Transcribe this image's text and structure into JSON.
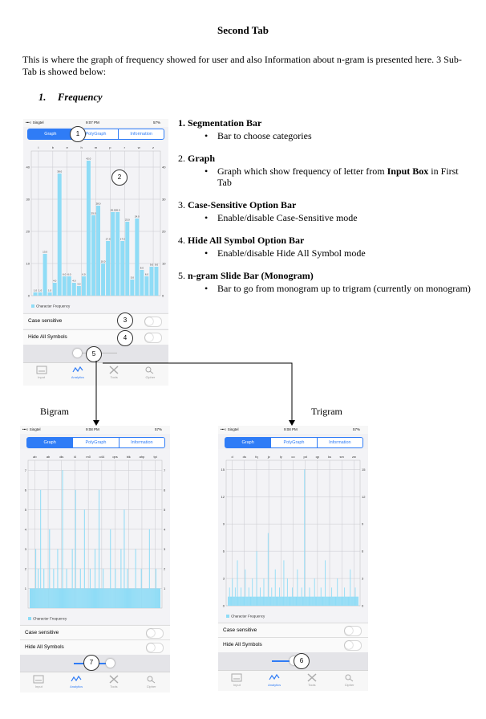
{
  "doc": {
    "title": "Second Tab",
    "intro": "This is where the graph of frequency showed for user and also Information about n-gram is presented here. 3 Sub-Tab is showed below:",
    "section_number": "1.",
    "section_title": "Frequency"
  },
  "list": [
    {
      "num": "1.",
      "head": "Segmentation Bar",
      "head_bold": true,
      "bullet_pre": "Bar to choose categories",
      "bullet_bold": "",
      "bullet_post": ""
    },
    {
      "num": "2.",
      "head": "Graph",
      "head_bold": true,
      "bullet_pre": "Graph which show frequency of letter from ",
      "bullet_bold": "Input Box",
      "bullet_post": " in First Tab"
    },
    {
      "num": "3.",
      "head": "Case-Sensitive Option Bar",
      "head_bold": true,
      "bullet_pre": "Enable/disable Case-Sensitive mode",
      "bullet_bold": "",
      "bullet_post": ""
    },
    {
      "num": "4.",
      "head": "Hide All Symbol Option Bar",
      "head_bold": true,
      "bullet_pre": "Enable/disable Hide All Symbol mode",
      "bullet_bold": "",
      "bullet_post": ""
    },
    {
      "num": "5.",
      "head": "n-gram Slide Bar (Monogram)",
      "head_bold": true,
      "bullet_pre": "Bar to go from monogram up to trigram (currently on monogram)",
      "bullet_bold": "",
      "bullet_post": ""
    }
  ],
  "captions": {
    "bigram": "Bigram",
    "trigram": "Trigram"
  },
  "phone_ui": {
    "carrier": "•••○ Singtel",
    "battery": "57%",
    "tabs": [
      "Graph",
      "PolyGraph",
      "Information"
    ],
    "legend": "Character Frequency",
    "case_sensitive": "Case sensitive",
    "hide_symbols": "Hide All Symbols",
    "tabbar": [
      "Input",
      "Analytics",
      "Tools",
      "Cipher"
    ]
  },
  "phones": {
    "mono": {
      "time": "9:07 PM",
      "case_label": "Case sensitive",
      "hide_label": "Hide All Symbols",
      "slider": 0.0
    },
    "bigram": {
      "time": "9:08 PM",
      "case_label": "Case sensitive",
      "hide_label": "Hide All Symbols",
      "slider": 0.5
    },
    "trigram": {
      "time": "9:08 PM",
      "case_label": "Case sensitive",
      "hide_label": "Hide All Symbols",
      "slider": 1.0
    }
  },
  "callouts": {
    "mono": [
      "1",
      "2",
      "3",
      "4",
      "5"
    ],
    "bigram": [
      "7"
    ],
    "trigram": [
      "6"
    ]
  },
  "chart_data": [
    {
      "type": "bar",
      "name": "monogram",
      "categories": [
        "",
        "",
        "",
        "",
        "",
        "",
        "",
        "",
        "",
        "",
        "",
        "",
        "",
        "",
        "",
        "",
        "",
        "",
        "",
        "",
        "",
        "",
        "",
        "",
        "",
        ""
      ],
      "top_tick_labels": [
        "i",
        "b",
        "e",
        "h",
        "m",
        "p",
        "r",
        "w",
        "z"
      ],
      "values": [
        1,
        1,
        13,
        1,
        4,
        38,
        6,
        6,
        4,
        3,
        6,
        42,
        25,
        28,
        10,
        17,
        26,
        26,
        17,
        23,
        5,
        24,
        8,
        6,
        9,
        9
      ],
      "data_labels": [
        "1.0",
        "1.0",
        "13.0",
        "1.0",
        "4.0",
        "38.0",
        "6.0",
        "6.0",
        "4.0",
        "3.0",
        "6.0",
        "42.0",
        "25.0",
        "28.0",
        "10.0",
        "17.0",
        "26.0",
        "26.0",
        "17.0",
        "23.0",
        "5.0",
        "24.0",
        "8.0",
        "6.0",
        "9.0",
        "9.0"
      ],
      "ylim": [
        0,
        45
      ],
      "yticks": [
        0,
        10,
        20,
        30,
        40
      ],
      "legend": "Character Frequency"
    },
    {
      "type": "bar",
      "name": "bigram",
      "top_tick_labels": [
        "ab",
        "ab",
        "dis",
        "i4",
        "m0",
        "o44",
        "qns",
        "bik",
        "ahp",
        "tpi"
      ],
      "values": [
        1,
        1,
        1,
        1,
        1,
        1,
        1,
        3,
        1,
        1,
        2,
        1,
        1,
        6,
        1,
        1,
        1,
        2,
        1,
        1,
        1,
        1,
        1,
        1,
        4,
        1,
        1,
        1,
        1,
        2,
        1,
        1,
        1,
        1,
        3,
        1,
        1,
        1,
        1,
        1,
        7,
        1,
        1,
        1,
        1,
        2,
        1,
        1,
        1,
        1,
        1,
        1,
        3,
        1,
        1,
        1,
        6,
        1,
        1,
        1,
        1,
        1,
        2,
        1,
        1,
        1,
        1,
        5,
        1,
        1,
        1,
        1,
        1,
        1,
        2,
        1,
        1,
        1,
        1,
        1,
        3,
        1,
        1,
        1,
        1,
        6,
        1,
        1,
        1,
        1,
        2,
        1,
        1,
        1,
        1,
        1,
        1,
        1,
        1,
        4,
        1,
        1,
        1,
        1,
        1,
        2,
        1,
        1,
        1,
        1,
        1,
        1,
        3,
        1,
        1,
        1,
        5,
        1,
        1,
        1,
        2,
        1,
        1,
        1,
        1,
        1,
        1,
        1,
        1,
        1,
        3,
        1,
        1,
        1,
        1,
        1,
        1,
        2,
        1,
        1,
        1,
        1,
        1,
        1,
        1,
        1,
        1,
        4,
        1,
        1,
        1,
        1,
        1,
        1,
        1,
        2,
        1,
        1,
        1,
        1,
        1
      ],
      "ylim": [
        0,
        7.5
      ],
      "yticks": [
        1,
        2,
        3,
        4,
        5,
        6,
        7
      ],
      "legend": "Character Frequency"
    },
    {
      "type": "bar",
      "name": "trigram",
      "top_tick_labels": [
        "d",
        "ds",
        "fq",
        "jz",
        "ly",
        "co",
        "pd",
        "qp",
        "ks",
        "sm",
        "zw"
      ],
      "values": [
        1,
        1,
        2,
        1,
        1,
        1,
        3,
        1,
        1,
        1,
        2,
        1,
        1,
        5,
        1,
        1,
        1,
        1,
        2,
        1,
        1,
        1,
        1,
        1,
        4,
        1,
        1,
        1,
        1,
        2,
        1,
        1,
        1,
        1,
        3,
        1,
        1,
        1,
        1,
        1,
        6,
        1,
        1,
        1,
        1,
        2,
        1,
        1,
        1,
        1,
        3,
        1,
        1,
        1,
        1,
        1,
        8,
        1,
        1,
        1,
        1,
        2,
        1,
        1,
        1,
        1,
        4,
        1,
        1,
        1,
        1,
        1,
        2,
        1,
        1,
        1,
        1,
        1,
        5,
        1,
        1,
        1,
        1,
        3,
        1,
        1,
        1,
        1,
        1,
        1,
        2,
        1,
        1,
        1,
        1,
        1,
        1,
        4,
        1,
        1,
        1,
        1,
        1,
        2,
        1,
        1,
        1,
        15,
        1,
        1,
        1,
        1,
        1,
        1,
        2,
        1,
        1,
        1,
        1,
        1,
        1,
        3,
        1,
        1,
        1,
        1,
        1,
        1,
        1,
        1,
        2,
        1,
        1,
        1,
        1,
        1,
        5,
        1,
        1,
        1,
        1,
        1,
        1,
        1,
        1,
        2,
        1,
        1,
        1,
        1,
        1,
        1,
        1,
        3,
        1,
        1,
        1,
        1,
        1,
        1,
        1,
        1,
        1,
        2,
        1,
        1,
        1,
        1,
        1,
        1,
        1,
        4,
        1,
        1,
        1,
        1,
        1,
        1,
        2,
        1,
        1,
        1,
        1
      ],
      "ylim": [
        0,
        16
      ],
      "yticks": [
        0,
        3,
        6,
        9,
        12,
        15
      ],
      "legend": "Character Frequency"
    }
  ]
}
